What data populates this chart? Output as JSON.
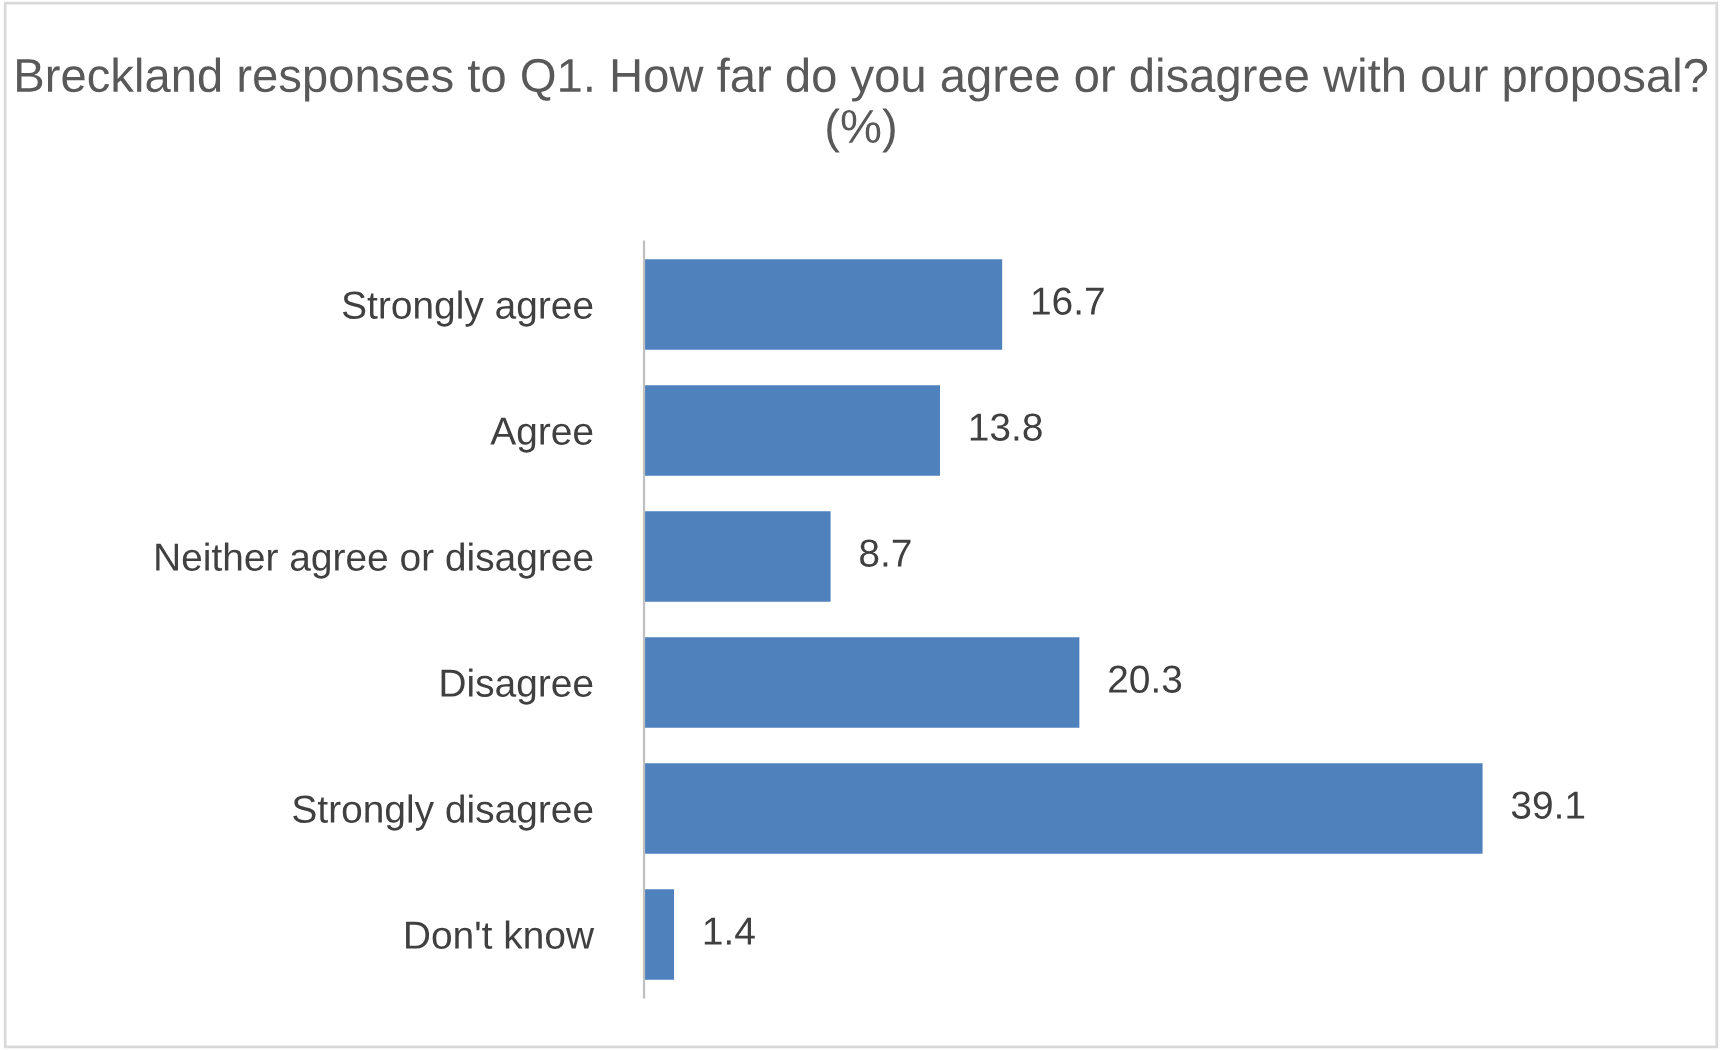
{
  "chart_data": {
    "type": "bar",
    "orientation": "horizontal",
    "title": "Breckland responses to Q1. How far do you agree or disagree with our proposal? (%)",
    "categories": [
      "Strongly agree",
      "Agree",
      "Neither agree or disagree",
      "Disagree",
      "Strongly disagree",
      "Don't know"
    ],
    "values": [
      16.7,
      13.8,
      8.7,
      20.3,
      39.1,
      1.4
    ],
    "color": "#4f81bd",
    "data_labels": true,
    "tick_labels": "y",
    "grid": false,
    "legend": false
  }
}
